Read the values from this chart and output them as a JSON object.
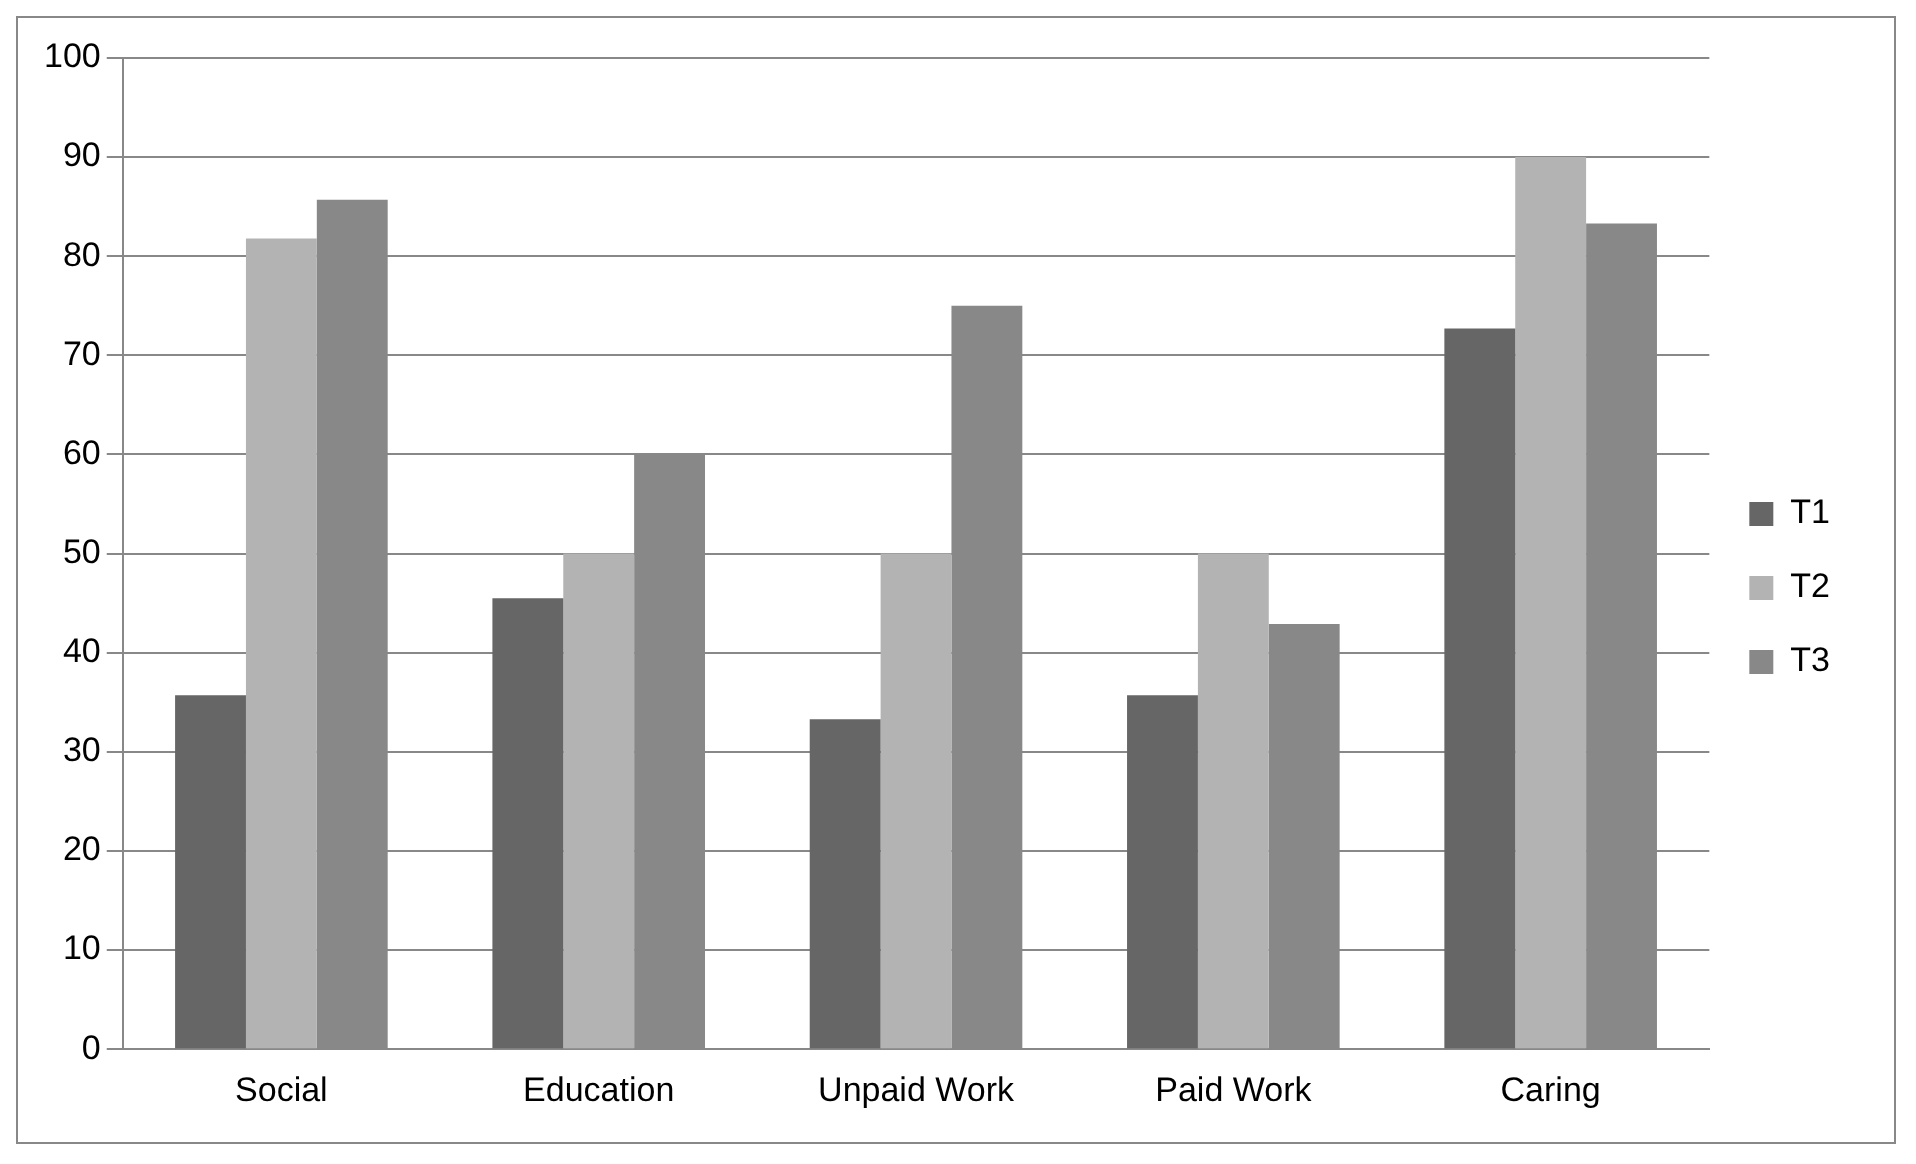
{
  "chart_data": {
    "type": "bar",
    "categories": [
      "Social",
      "Education",
      "Unpaid Work",
      "Paid Work",
      "Caring"
    ],
    "series": [
      {
        "name": "T1",
        "color": "#666666",
        "values": [
          35.7,
          45.5,
          33.3,
          35.7,
          72.7
        ]
      },
      {
        "name": "T2",
        "color": "#b3b3b3",
        "values": [
          81.8,
          50,
          50,
          50,
          90
        ]
      },
      {
        "name": "T3",
        "color": "#888888",
        "values": [
          85.7,
          60,
          75,
          42.9,
          83.3
        ]
      }
    ],
    "ylim": [
      0,
      100
    ],
    "yticks": [
      0,
      10,
      20,
      30,
      40,
      50,
      60,
      70,
      80,
      90,
      100
    ],
    "grid": "y",
    "legend": "right"
  }
}
